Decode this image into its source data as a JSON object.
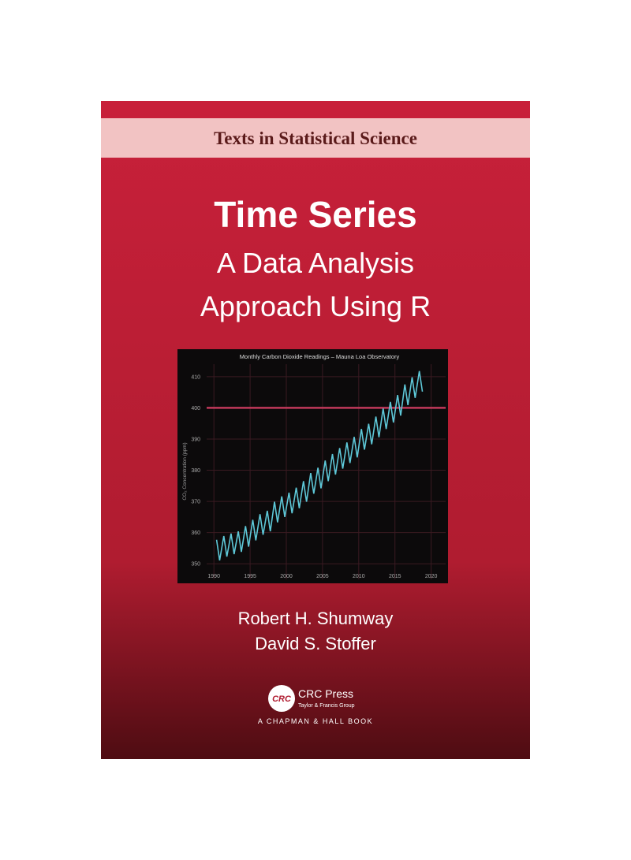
{
  "series_label": "Texts in Statistical Science",
  "title": "Time Series",
  "subtitle": [
    "A Data Analysis",
    "Approach Using R"
  ],
  "chart_data": {
    "type": "line",
    "title": "Monthly Carbon Dioxide Readings – Mauna Loa Observatory",
    "y_label": "CO₂ Concentration (ppm)",
    "x": [
      1990.37,
      1990.79,
      1991.37,
      1991.79,
      1992.37,
      1992.79,
      1993.37,
      1993.79,
      1994.37,
      1994.79,
      1995.37,
      1995.79,
      1996.37,
      1996.79,
      1997.37,
      1997.79,
      1998.37,
      1998.79,
      1999.37,
      1999.79,
      2000.37,
      2000.79,
      2001.37,
      2001.79,
      2002.37,
      2002.79,
      2003.37,
      2003.79,
      2004.37,
      2004.79,
      2005.37,
      2005.79,
      2006.37,
      2006.79,
      2007.37,
      2007.79,
      2008.37,
      2008.79,
      2009.37,
      2009.79,
      2010.37,
      2010.79,
      2011.37,
      2011.79,
      2012.37,
      2012.79,
      2013.37,
      2013.79,
      2014.37,
      2014.79,
      2015.37,
      2015.79,
      2016.37,
      2016.79,
      2017.37,
      2017.79,
      2018.37,
      2018.79
    ],
    "values": [
      357.7,
      351.1,
      358.9,
      352.3,
      359.7,
      353.1,
      360.4,
      353.8,
      362.1,
      355.5,
      364.1,
      357.5,
      365.9,
      359.3,
      367.0,
      360.4,
      369.9,
      363.3,
      371.6,
      365.0,
      372.8,
      366.2,
      374.4,
      367.8,
      376.5,
      369.9,
      379.1,
      372.5,
      380.8,
      374.2,
      383.1,
      376.5,
      385.2,
      378.6,
      387.1,
      380.5,
      388.9,
      382.3,
      390.7,
      384.1,
      393.2,
      386.6,
      394.9,
      388.3,
      397.2,
      390.6,
      399.8,
      393.2,
      401.9,
      395.3,
      404.1,
      397.5,
      407.5,
      400.9,
      409.8,
      403.2,
      411.8,
      405.2
    ],
    "color": "#5ec8d8",
    "xlim": [
      1989,
      2022
    ],
    "ylim": [
      345,
      414
    ],
    "xticks": [
      1990,
      1995,
      2000,
      2005,
      2010,
      2015,
      2020
    ],
    "yticks": [
      350,
      360,
      370,
      380,
      390,
      400,
      410
    ],
    "grid": true,
    "reference_line": 400,
    "reference_color": "#c0395a"
  },
  "authors": [
    "Robert H. Shumway",
    "David S. Stoffer"
  ],
  "publisher": {
    "logo": "CRC",
    "name": "CRC Press",
    "group": "Taylor & Francis Group",
    "imprint": "A CHAPMAN & HALL BOOK"
  }
}
